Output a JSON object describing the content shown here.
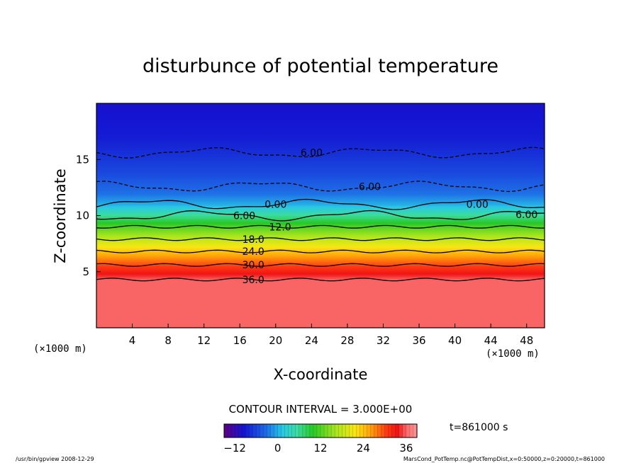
{
  "chart_data": {
    "type": "heatmap",
    "title": "disturbunce of potential temperature",
    "xlabel": "X-coordinate",
    "ylabel": "Z-coordinate",
    "x_unit_note": "(×1000 m)",
    "y_unit_note": "(×1000 m)",
    "xlim": [
      0,
      50
    ],
    "ylim": [
      0,
      20
    ],
    "x_ticks": [
      4,
      8,
      12,
      16,
      20,
      24,
      28,
      32,
      36,
      40,
      44,
      48
    ],
    "y_ticks": [
      5,
      10,
      15
    ],
    "contour_interval_label": "CONTOUR INTERVAL = 3.000E+00",
    "time_label": "t=861000 s",
    "colorbar": {
      "range": [
        -15,
        39
      ],
      "ticks": [
        -12,
        0,
        12,
        24,
        36
      ]
    },
    "contour_labels": [
      {
        "text": "36.0",
        "x": 17.5,
        "z": 4.3
      },
      {
        "text": "30.0",
        "x": 17.5,
        "z": 5.6
      },
      {
        "text": "24.0",
        "x": 17.5,
        "z": 6.8
      },
      {
        "text": "18.0",
        "x": 17.5,
        "z": 7.9
      },
      {
        "text": "12.0",
        "x": 20.5,
        "z": 9.0
      },
      {
        "text": "6.00",
        "x": 16.5,
        "z": 10.0
      },
      {
        "text": "0.00",
        "x": 20.0,
        "z": 11.0
      },
      {
        "text": "0.00",
        "x": 42.5,
        "z": 11.0
      },
      {
        "text": "6.00",
        "x": 48.0,
        "z": 10.1
      },
      {
        "text": "6.00",
        "x": 30.5,
        "z": 12.6
      },
      {
        "text": "6.00",
        "x": 24.0,
        "z": 15.6
      }
    ],
    "profile": [
      {
        "z": 0.0,
        "value": 36
      },
      {
        "z": 4.3,
        "value": 36
      },
      {
        "z": 5.6,
        "value": 30
      },
      {
        "z": 6.8,
        "value": 24
      },
      {
        "z": 7.9,
        "value": 18
      },
      {
        "z": 9.0,
        "value": 12
      },
      {
        "z": 10.0,
        "value": 6
      },
      {
        "z": 11.0,
        "value": 0
      },
      {
        "z": 12.0,
        "value": -3
      },
      {
        "z": 14.0,
        "value": -6
      },
      {
        "z": 17.0,
        "value": -9
      },
      {
        "z": 20.0,
        "value": -10
      }
    ]
  },
  "footer": {
    "left": "/usr/bin/gpview  2008-12-29",
    "right": "MarsCond_PotTemp.nc@PotTempDist,x=0:50000,z=0:20000,t=861000"
  }
}
